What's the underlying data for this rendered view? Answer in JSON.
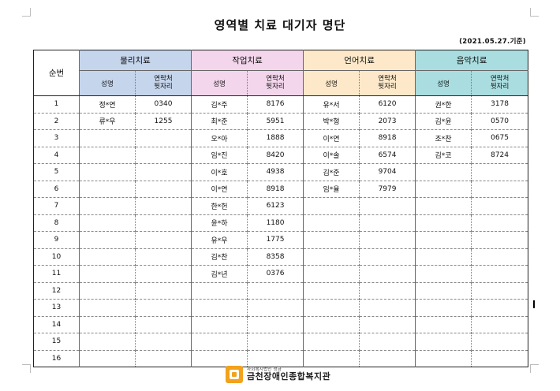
{
  "title": "영역별 치료 대기자 명단",
  "date_note": "(2021.05.27.기준)",
  "table": {
    "index_header": "순번",
    "groups": [
      {
        "label": "물리치료",
        "color": "#c5d5ec"
      },
      {
        "label": "작업치료",
        "color": "#f3d6ec"
      },
      {
        "label": "언어치료",
        "color": "#fde9c9"
      },
      {
        "label": "음악치료",
        "color": "#a9dde0"
      }
    ],
    "sub_name": "성명",
    "sub_contact_line1": "연락처",
    "sub_contact_line2": "뒷자리",
    "rows": [
      [
        "1",
        "정*연",
        "0340",
        "김*주",
        "8176",
        "유*서",
        "6120",
        "권*한",
        "3178"
      ],
      [
        "2",
        "류*우",
        "1255",
        "최*준",
        "5951",
        "박*형",
        "2073",
        "김*윤",
        "0570"
      ],
      [
        "3",
        "",
        "",
        "오*아",
        "1888",
        "이*연",
        "8918",
        "조*찬",
        "0675"
      ],
      [
        "4",
        "",
        "",
        "임*진",
        "8420",
        "이*솔",
        "6574",
        "김*코",
        "8724"
      ],
      [
        "5",
        "",
        "",
        "이*호",
        "4938",
        "김*준",
        "9704",
        "",
        ""
      ],
      [
        "6",
        "",
        "",
        "이*연",
        "8918",
        "임*율",
        "7979",
        "",
        ""
      ],
      [
        "7",
        "",
        "",
        "한*헌",
        "6123",
        "",
        "",
        "",
        ""
      ],
      [
        "8",
        "",
        "",
        "윤*하",
        "1180",
        "",
        "",
        "",
        ""
      ],
      [
        "9",
        "",
        "",
        "유*우",
        "1775",
        "",
        "",
        "",
        ""
      ],
      [
        "10",
        "",
        "",
        "김*찬",
        "8358",
        "",
        "",
        "",
        ""
      ],
      [
        "11",
        "",
        "",
        "김*년",
        "0376",
        "",
        "",
        "",
        ""
      ],
      [
        "12",
        "",
        "",
        "",
        "",
        "",
        "",
        "",
        ""
      ],
      [
        "13",
        "",
        "",
        "",
        "",
        "",
        "",
        "",
        ""
      ],
      [
        "14",
        "",
        "",
        "",
        "",
        "",
        "",
        "",
        ""
      ],
      [
        "15",
        "",
        "",
        "",
        "",
        "",
        "",
        "",
        ""
      ],
      [
        "16",
        "",
        "",
        "",
        "",
        "",
        "",
        "",
        ""
      ]
    ]
  },
  "footer": {
    "org_sub": "사회복지법인 성금",
    "org_name": "금천장애인종합복지관",
    "logo_icon": "welfare-center-logo-icon"
  }
}
